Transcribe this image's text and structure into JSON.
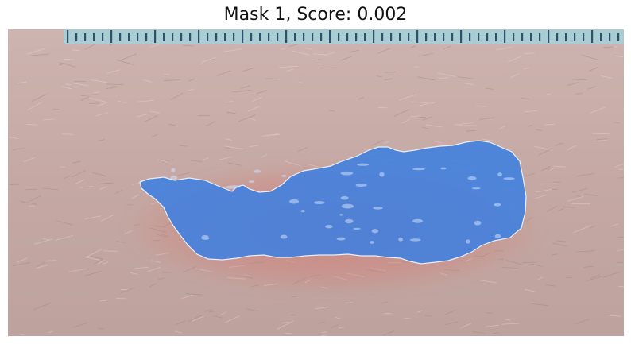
{
  "figure": {
    "title": "Mask 1, Score: 0.002",
    "colors": {
      "skin_base": "#c7aaa5",
      "skin_light": "#d9c5c1",
      "skin_dark": "#a98f8a",
      "ruler_strip": "#a9cdd2",
      "ruler_tick": "#2f4f6a",
      "redness": "#d47a73",
      "mask_fill": "#3f7fe0",
      "mask_edge": "#e8eef8"
    },
    "icons": [
      "ruler",
      "wound-mask-overlay"
    ]
  }
}
